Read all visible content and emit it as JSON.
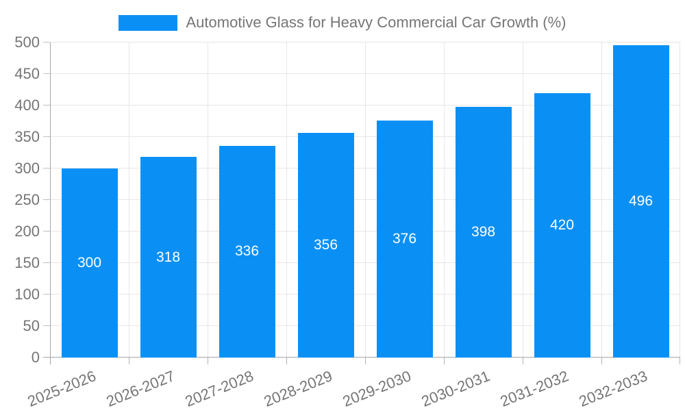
{
  "chart_data": {
    "type": "bar",
    "title": "Automotive Glass for Heavy Commercial Car Growth (%)",
    "categories": [
      "2025-2026",
      "2026-2027",
      "2027-2028",
      "2028-2029",
      "2029-2030",
      "2030-2031",
      "2031-2032",
      "2032-2033"
    ],
    "values": [
      300,
      318,
      336,
      356,
      376,
      398,
      420,
      496
    ],
    "xlabel": "",
    "ylabel": "",
    "ylim": [
      0,
      500
    ],
    "ytick_step": 50,
    "yticks": [
      0,
      50,
      100,
      150,
      200,
      250,
      300,
      350,
      400,
      450,
      500
    ],
    "grid": true,
    "legend_position": "top",
    "value_labels_position": "inside-center",
    "x_label_rotation_deg": -22,
    "colors": {
      "bar": "#0a90f5",
      "bar_label": "#ffffff",
      "axis_text": "#757575",
      "gridline": "#e6e6e6",
      "axis_line": "#a6a6a6",
      "background": "#ffffff"
    }
  }
}
